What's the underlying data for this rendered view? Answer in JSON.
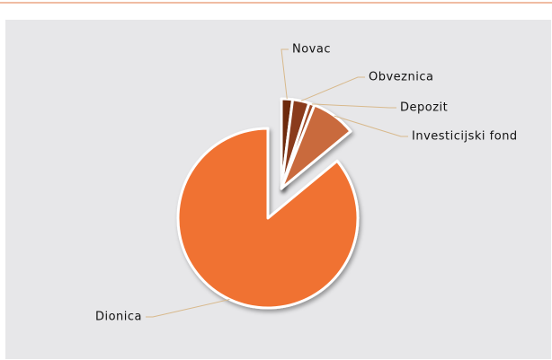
{
  "chart_data": {
    "type": "pie",
    "categories": [
      "Novac",
      "Obveznica",
      "Depozit",
      "Investicijski fond",
      "Dionica"
    ],
    "values": [
      2,
      3,
      1,
      8,
      86
    ],
    "colors": [
      "#6e2a10",
      "#8a3a1b",
      "#a24b26",
      "#c96a3c",
      "#f07232"
    ]
  }
}
